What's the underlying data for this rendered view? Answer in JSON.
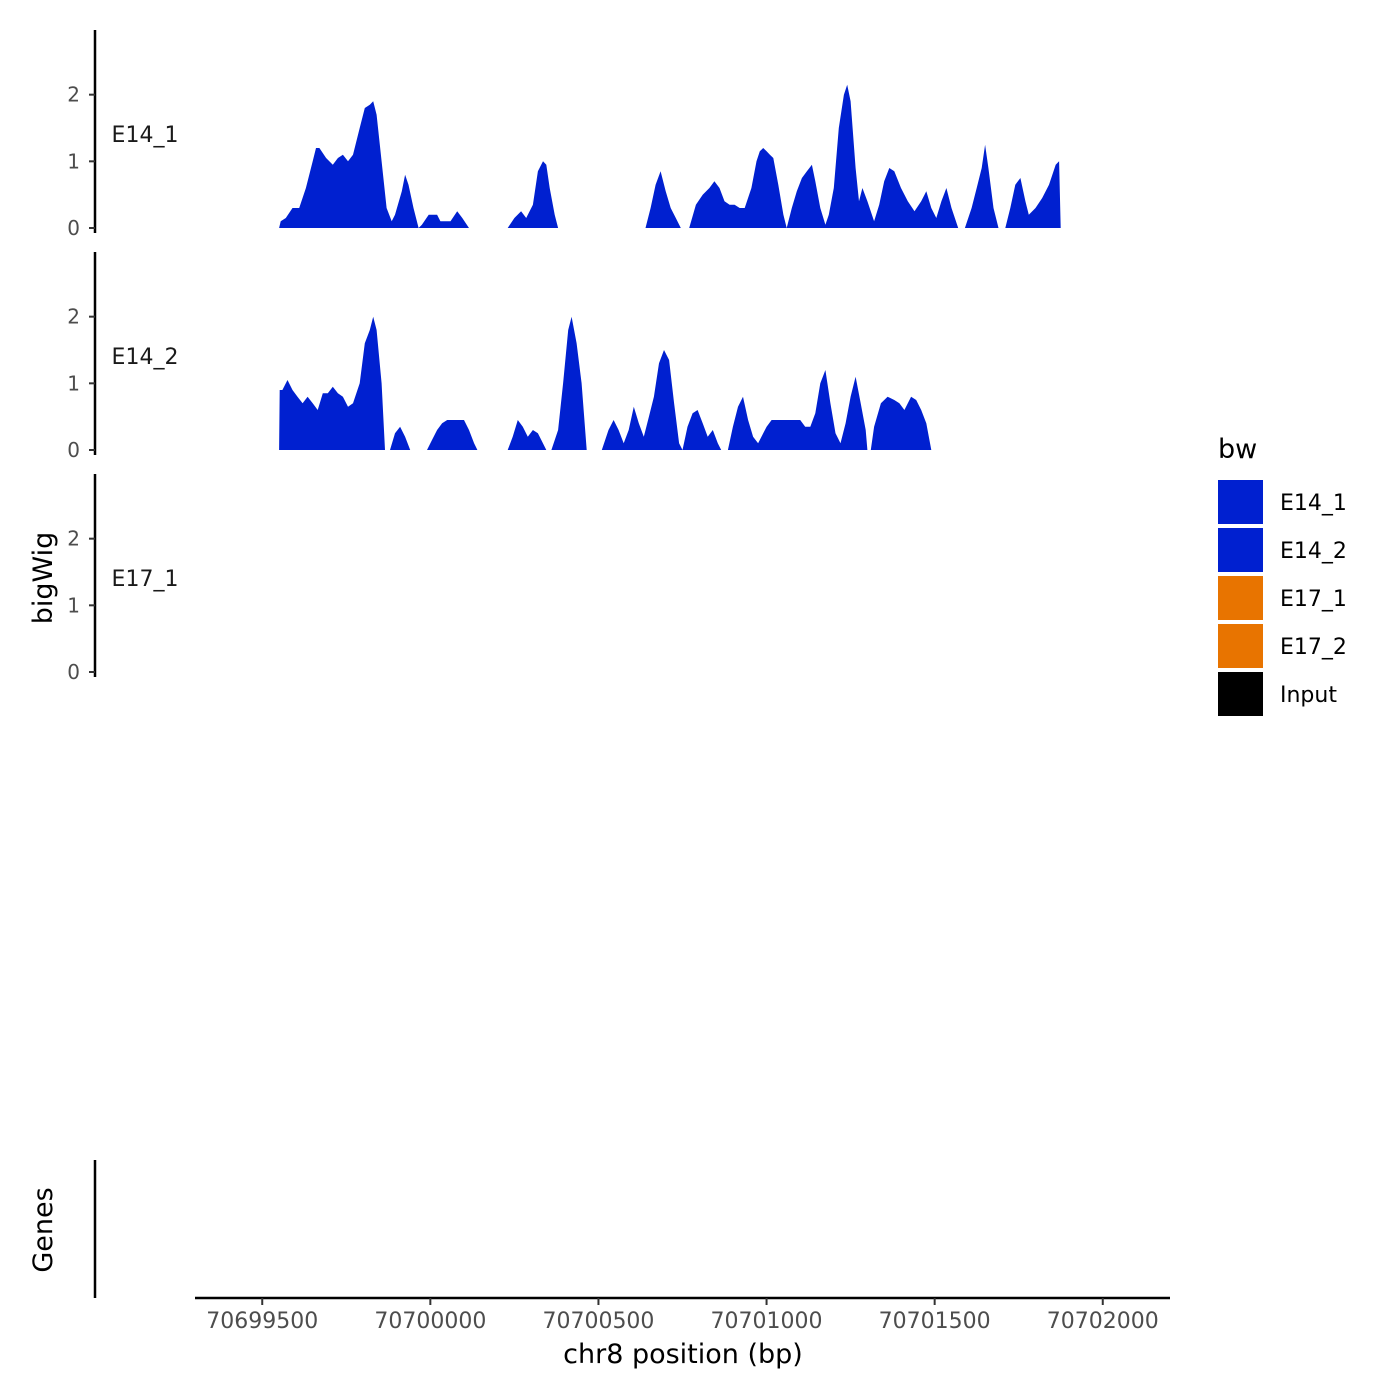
{
  "chart_data": {
    "type": "area",
    "x_axis": {
      "title": "chr8 position (bp)",
      "range": [
        70699300,
        70702200
      ],
      "ticks": [
        70699500,
        70700000,
        70700500,
        70701000,
        70701500,
        70702000
      ],
      "tick_labels": [
        "70699500",
        "70700000",
        "70700500",
        "70701000",
        "70701500",
        "70702000"
      ]
    },
    "y_axis": {
      "title": "bigWig",
      "range": [
        0,
        3
      ],
      "ticks": [
        0,
        1,
        2
      ],
      "tick_labels": [
        "0",
        "1",
        "2"
      ]
    },
    "legend": {
      "title": "bw",
      "position": "right",
      "entries": [
        {
          "label": "E14_1",
          "color": "#0020D0"
        },
        {
          "label": "E14_2",
          "color": "#0020D0"
        },
        {
          "label": "E17_1",
          "color": "#E87400"
        },
        {
          "label": "E17_2",
          "color": "#E87400"
        },
        {
          "label": "Input",
          "color": "#000000"
        }
      ]
    },
    "series": [
      {
        "name": "E14_1",
        "color": "#0020D0",
        "points": [
          [
            70699550,
            0
          ],
          [
            70699555,
            0.1
          ],
          [
            70699570,
            0.15
          ],
          [
            70699590,
            0.3
          ],
          [
            70699610,
            0.3
          ],
          [
            70699630,
            0.6
          ],
          [
            70699650,
            1.0
          ],
          [
            70699660,
            1.2
          ],
          [
            70699670,
            1.2
          ],
          [
            70699690,
            1.05
          ],
          [
            70699710,
            0.95
          ],
          [
            70699725,
            1.05
          ],
          [
            70699740,
            1.1
          ],
          [
            70699755,
            1.0
          ],
          [
            70699770,
            1.1
          ],
          [
            70699790,
            1.5
          ],
          [
            70699805,
            1.8
          ],
          [
            70699820,
            1.85
          ],
          [
            70699830,
            1.9
          ],
          [
            70699840,
            1.7
          ],
          [
            70699855,
            1.0
          ],
          [
            70699870,
            0.3
          ],
          [
            70699885,
            0.1
          ],
          [
            70699895,
            0.2
          ],
          [
            70699915,
            0.55
          ],
          [
            70699925,
            0.8
          ],
          [
            70699935,
            0.65
          ],
          [
            70699950,
            0.3
          ],
          [
            70699965,
            0
          ],
          [
            70699975,
            0.05
          ],
          [
            70699995,
            0.2
          ],
          [
            70700020,
            0.2
          ],
          [
            70700030,
            0.1
          ],
          [
            70700060,
            0.1
          ],
          [
            70700080,
            0.25
          ],
          [
            70700095,
            0.15
          ],
          [
            70700115,
            0
          ],
          [
            70700230,
            0
          ],
          [
            70700250,
            0.15
          ],
          [
            70700270,
            0.25
          ],
          [
            70700285,
            0.15
          ],
          [
            70700305,
            0.35
          ],
          [
            70700320,
            0.85
          ],
          [
            70700335,
            1.0
          ],
          [
            70700345,
            0.95
          ],
          [
            70700355,
            0.6
          ],
          [
            70700370,
            0.2
          ],
          [
            70700380,
            0
          ],
          [
            70700640,
            0
          ],
          [
            70700655,
            0.3
          ],
          [
            70700670,
            0.65
          ],
          [
            70700685,
            0.85
          ],
          [
            70700700,
            0.55
          ],
          [
            70700715,
            0.3
          ],
          [
            70700730,
            0.15
          ],
          [
            70700745,
            0
          ],
          [
            70700770,
            0
          ],
          [
            70700790,
            0.35
          ],
          [
            70700810,
            0.5
          ],
          [
            70700830,
            0.6
          ],
          [
            70700845,
            0.7
          ],
          [
            70700860,
            0.6
          ],
          [
            70700875,
            0.4
          ],
          [
            70700890,
            0.35
          ],
          [
            70700905,
            0.35
          ],
          [
            70700920,
            0.3
          ],
          [
            70700935,
            0.3
          ],
          [
            70700955,
            0.6
          ],
          [
            70700970,
            1.0
          ],
          [
            70700980,
            1.15
          ],
          [
            70700990,
            1.2
          ],
          [
            70701000,
            1.15
          ],
          [
            70701010,
            1.1
          ],
          [
            70701020,
            1.05
          ],
          [
            70701035,
            0.65
          ],
          [
            70701050,
            0.2
          ],
          [
            70701060,
            0
          ],
          [
            70701075,
            0.3
          ],
          [
            70701090,
            0.55
          ],
          [
            70701105,
            0.75
          ],
          [
            70701120,
            0.85
          ],
          [
            70701135,
            0.95
          ],
          [
            70701145,
            0.7
          ],
          [
            70701160,
            0.3
          ],
          [
            70701175,
            0.05
          ],
          [
            70701185,
            0.2
          ],
          [
            70701200,
            0.6
          ],
          [
            70701215,
            1.5
          ],
          [
            70701230,
            2.0
          ],
          [
            70701240,
            2.15
          ],
          [
            70701250,
            1.9
          ],
          [
            70701265,
            0.9
          ],
          [
            70701275,
            0.4
          ],
          [
            70701285,
            0.6
          ],
          [
            70701300,
            0.4
          ],
          [
            70701320,
            0.1
          ],
          [
            70701335,
            0.35
          ],
          [
            70701350,
            0.7
          ],
          [
            70701365,
            0.9
          ],
          [
            70701380,
            0.85
          ],
          [
            70701400,
            0.6
          ],
          [
            70701420,
            0.4
          ],
          [
            70701440,
            0.25
          ],
          [
            70701460,
            0.4
          ],
          [
            70701475,
            0.55
          ],
          [
            70701490,
            0.3
          ],
          [
            70701505,
            0.15
          ],
          [
            70701520,
            0.4
          ],
          [
            70701535,
            0.6
          ],
          [
            70701550,
            0.3
          ],
          [
            70701570,
            0
          ],
          [
            70701590,
            0
          ],
          [
            70701610,
            0.3
          ],
          [
            70701625,
            0.6
          ],
          [
            70701640,
            0.9
          ],
          [
            70701650,
            1.25
          ],
          [
            70701660,
            0.9
          ],
          [
            70701675,
            0.3
          ],
          [
            70701690,
            0
          ],
          [
            70701710,
            0
          ],
          [
            70701725,
            0.3
          ],
          [
            70701740,
            0.65
          ],
          [
            70701755,
            0.75
          ],
          [
            70701770,
            0.4
          ],
          [
            70701780,
            0.2
          ],
          [
            70701800,
            0.3
          ],
          [
            70701820,
            0.45
          ],
          [
            70701840,
            0.65
          ],
          [
            70701860,
            0.95
          ],
          [
            70701870,
            1.0
          ],
          [
            70701875,
            0
          ],
          [
            70701880,
            0
          ]
        ]
      },
      {
        "name": "E14_2",
        "color": "#0020D0",
        "points": [
          [
            70699550,
            0
          ],
          [
            70699552,
            0.9
          ],
          [
            70699560,
            0.9
          ],
          [
            70699575,
            1.05
          ],
          [
            70699590,
            0.9
          ],
          [
            70699605,
            0.8
          ],
          [
            70699620,
            0.7
          ],
          [
            70699635,
            0.8
          ],
          [
            70699650,
            0.7
          ],
          [
            70699665,
            0.6
          ],
          [
            70699680,
            0.85
          ],
          [
            70699695,
            0.85
          ],
          [
            70699710,
            0.95
          ],
          [
            70699725,
            0.85
          ],
          [
            70699740,
            0.8
          ],
          [
            70699755,
            0.65
          ],
          [
            70699770,
            0.7
          ],
          [
            70699790,
            1.0
          ],
          [
            70699805,
            1.6
          ],
          [
            70699820,
            1.8
          ],
          [
            70699830,
            2.0
          ],
          [
            70699840,
            1.8
          ],
          [
            70699855,
            1.0
          ],
          [
            70699865,
            0
          ],
          [
            70699880,
            0
          ],
          [
            70699895,
            0.25
          ],
          [
            70699910,
            0.35
          ],
          [
            70699925,
            0.2
          ],
          [
            70699940,
            0
          ],
          [
            70699990,
            0
          ],
          [
            70700005,
            0.15
          ],
          [
            70700020,
            0.3
          ],
          [
            70700035,
            0.4
          ],
          [
            70700050,
            0.45
          ],
          [
            70700100,
            0.45
          ],
          [
            70700115,
            0.3
          ],
          [
            70700130,
            0.1
          ],
          [
            70700140,
            0
          ],
          [
            70700230,
            0
          ],
          [
            70700245,
            0.2
          ],
          [
            70700260,
            0.45
          ],
          [
            70700275,
            0.35
          ],
          [
            70700290,
            0.2
          ],
          [
            70700305,
            0.3
          ],
          [
            70700320,
            0.25
          ],
          [
            70700330,
            0.15
          ],
          [
            70700345,
            0
          ],
          [
            70700360,
            0
          ],
          [
            70700380,
            0.3
          ],
          [
            70700395,
            1.0
          ],
          [
            70700410,
            1.8
          ],
          [
            70700420,
            2.0
          ],
          [
            70700435,
            1.6
          ],
          [
            70700450,
            1.0
          ],
          [
            70700465,
            0
          ],
          [
            70700510,
            0
          ],
          [
            70700530,
            0.3
          ],
          [
            70700545,
            0.45
          ],
          [
            70700560,
            0.3
          ],
          [
            70700575,
            0.1
          ],
          [
            70700590,
            0.3
          ],
          [
            70700605,
            0.65
          ],
          [
            70700620,
            0.4
          ],
          [
            70700635,
            0.2
          ],
          [
            70700650,
            0.5
          ],
          [
            70700665,
            0.8
          ],
          [
            70700680,
            1.3
          ],
          [
            70700695,
            1.5
          ],
          [
            70700710,
            1.35
          ],
          [
            70700725,
            0.7
          ],
          [
            70700740,
            0.1
          ],
          [
            70700750,
            0
          ],
          [
            70700765,
            0.35
          ],
          [
            70700780,
            0.55
          ],
          [
            70700795,
            0.6
          ],
          [
            70700810,
            0.4
          ],
          [
            70700825,
            0.2
          ],
          [
            70700840,
            0.3
          ],
          [
            70700855,
            0.1
          ],
          [
            70700865,
            0
          ],
          [
            70700885,
            0
          ],
          [
            70700900,
            0.35
          ],
          [
            70700915,
            0.65
          ],
          [
            70700930,
            0.8
          ],
          [
            70700945,
            0.45
          ],
          [
            70700960,
            0.2
          ],
          [
            70700975,
            0.1
          ],
          [
            70701000,
            0.35
          ],
          [
            70701015,
            0.45
          ],
          [
            70701100,
            0.45
          ],
          [
            70701115,
            0.35
          ],
          [
            70701130,
            0.35
          ],
          [
            70701145,
            0.55
          ],
          [
            70701160,
            1.0
          ],
          [
            70701175,
            1.2
          ],
          [
            70701190,
            0.7
          ],
          [
            70701205,
            0.25
          ],
          [
            70701220,
            0.1
          ],
          [
            70701235,
            0.4
          ],
          [
            70701250,
            0.8
          ],
          [
            70701265,
            1.1
          ],
          [
            70701280,
            0.7
          ],
          [
            70701295,
            0.3
          ],
          [
            70701300,
            0
          ],
          [
            70701310,
            0
          ],
          [
            70701320,
            0.35
          ],
          [
            70701340,
            0.7
          ],
          [
            70701360,
            0.8
          ],
          [
            70701380,
            0.75
          ],
          [
            70701395,
            0.7
          ],
          [
            70701410,
            0.6
          ],
          [
            70701430,
            0.8
          ],
          [
            70701445,
            0.75
          ],
          [
            70701460,
            0.6
          ],
          [
            70701475,
            0.4
          ],
          [
            70701490,
            0
          ]
        ]
      },
      {
        "name": "E17_1",
        "color": "#E87400"
      }
    ]
  }
}
